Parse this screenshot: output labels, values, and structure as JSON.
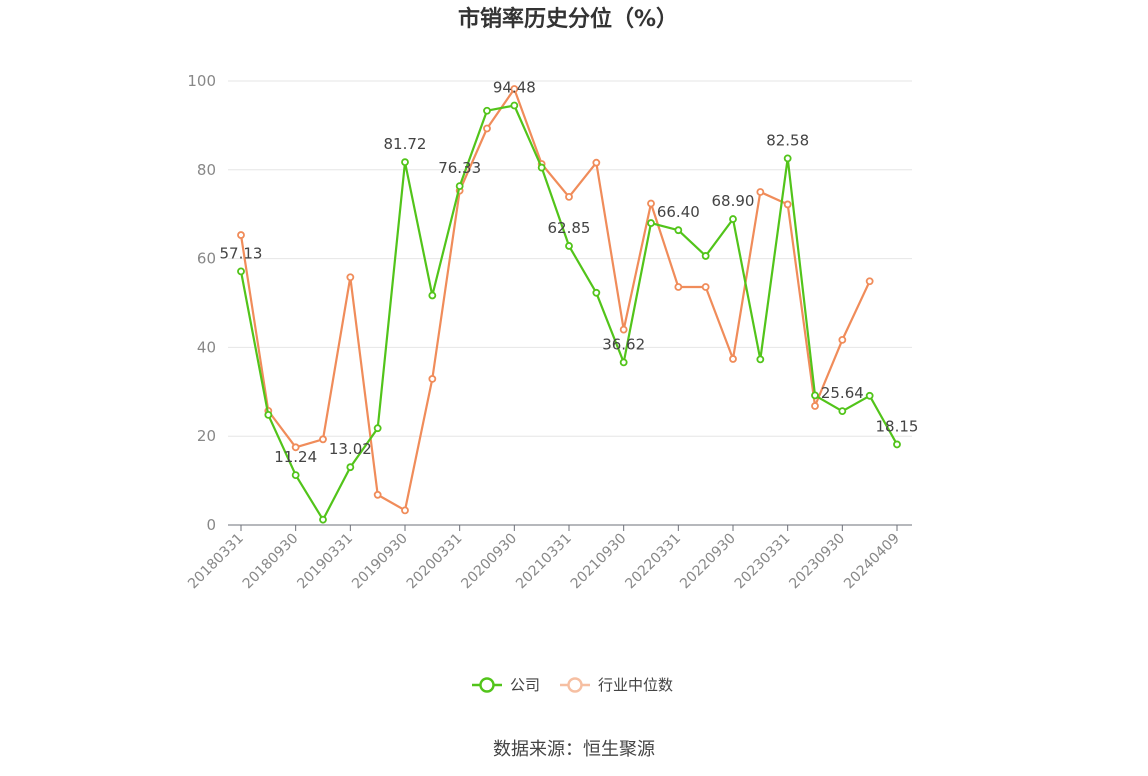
{
  "chart_data": {
    "type": "line",
    "title": "市销率历史分位（%）",
    "source": "数据来源：恒生聚源",
    "ylim": [
      0,
      100
    ],
    "yticks": [
      0,
      20,
      40,
      60,
      80,
      100
    ],
    "xtick_labels": [
      "20180331",
      "20180930",
      "20190331",
      "20190930",
      "20200331",
      "20200930",
      "20210331",
      "20210930",
      "20220331",
      "20220930",
      "20230331",
      "20230930",
      "20240409"
    ],
    "grid": true,
    "legend_position": "bottom-center",
    "series": [
      {
        "name": "公司",
        "color": "#52c41a",
        "values": [
          57.13,
          24.8,
          11.24,
          1.2,
          13.02,
          21.8,
          81.72,
          51.7,
          76.33,
          93.3,
          94.48,
          80.5,
          62.85,
          52.3,
          36.62,
          68.0,
          66.4,
          60.6,
          68.9,
          37.3,
          82.58,
          29.2,
          25.64,
          29.1,
          18.15
        ],
        "labels": {
          "0": "57.13",
          "2": "11.24",
          "4": "13.02",
          "6": "81.72",
          "8": "76.33",
          "10": "94.48",
          "12": "62.85",
          "14": "36.62",
          "16": "66.40",
          "18": "68.90",
          "20": "82.58",
          "22": "25.64",
          "24": "18.15"
        }
      },
      {
        "name": "行业中位数",
        "color": "#f08c5a",
        "values": [
          65.3,
          25.7,
          17.5,
          19.3,
          55.8,
          6.8,
          3.3,
          32.9,
          75.3,
          89.3,
          98.2,
          81.3,
          73.9,
          81.6,
          44.0,
          72.4,
          53.6,
          53.6,
          37.4,
          75.0,
          72.2,
          26.8,
          41.7,
          54.9,
          null
        ]
      }
    ]
  }
}
